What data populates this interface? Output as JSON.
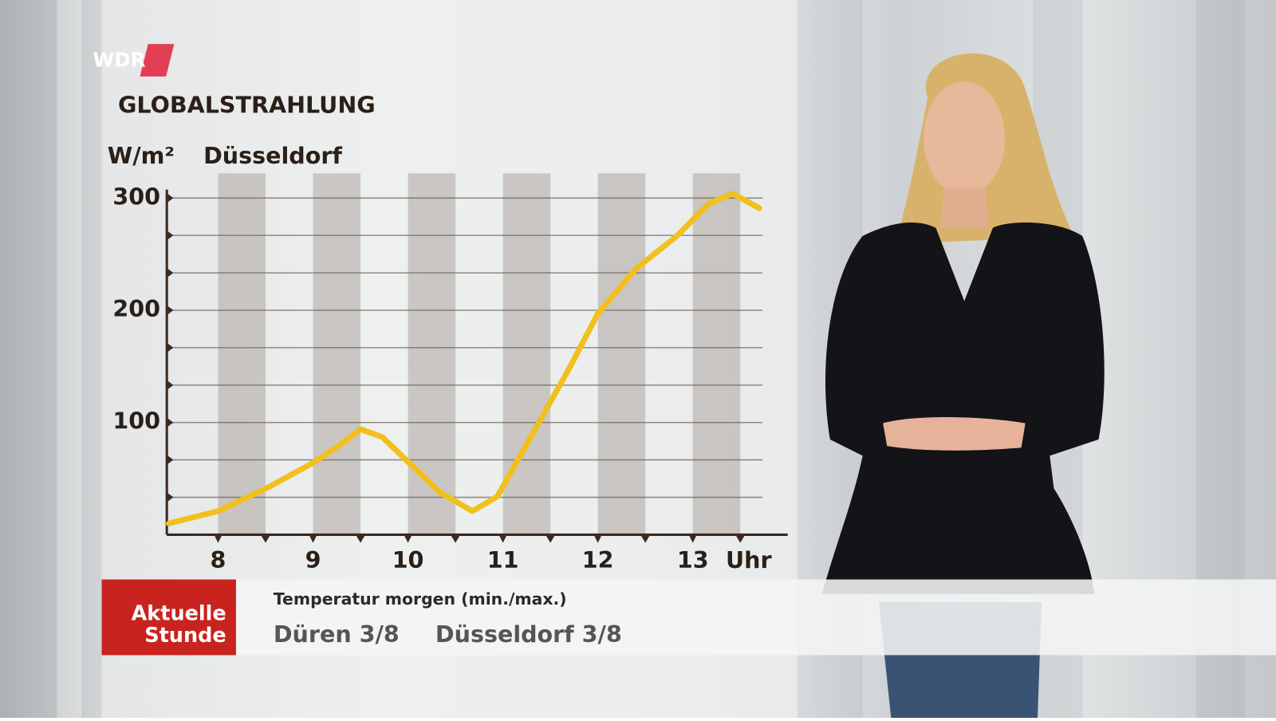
{
  "logo": "WDR",
  "chart_data": {
    "type": "line",
    "title": "GLOBALSTRAHLUNG",
    "subtitle": "Düsseldorf",
    "y_label": "W/m²",
    "x_label": "Uhr",
    "x": [
      7.48,
      8,
      8.5,
      9,
      9.3,
      9.5,
      9.73,
      10,
      10.33,
      10.68,
      10.94,
      11.28,
      11.71,
      12,
      12.4,
      12.83,
      13.17,
      13.42,
      13.7
    ],
    "series": [
      {
        "name": "Globalstrahlung",
        "color": "#f2c01e",
        "values": [
          10,
          21,
          41,
          64,
          81,
          94,
          87,
          65,
          38,
          21,
          34,
          85,
          150,
          197,
          237,
          266,
          295,
          304,
          291
        ]
      }
    ],
    "xlim": [
      7.46,
      14
    ],
    "ylim": [
      0,
      322
    ],
    "xticks": [
      8,
      9,
      10,
      11,
      12,
      13
    ],
    "x_minor_ticks": [
      8.5,
      9.5,
      10.5,
      11.5,
      12.5,
      13.5
    ],
    "yticks": [
      100,
      200,
      300
    ],
    "y_minor_ticks": [
      33.3,
      66.7,
      133.3,
      166.7,
      233.3,
      266.7
    ],
    "grid": true
  },
  "ticker": {
    "brand": [
      "Aktuelle",
      "Stunde"
    ],
    "heading": "Temperatur morgen (min./max.)",
    "items": [
      "Düren 3/8",
      "Düsseldorf 3/8"
    ]
  }
}
